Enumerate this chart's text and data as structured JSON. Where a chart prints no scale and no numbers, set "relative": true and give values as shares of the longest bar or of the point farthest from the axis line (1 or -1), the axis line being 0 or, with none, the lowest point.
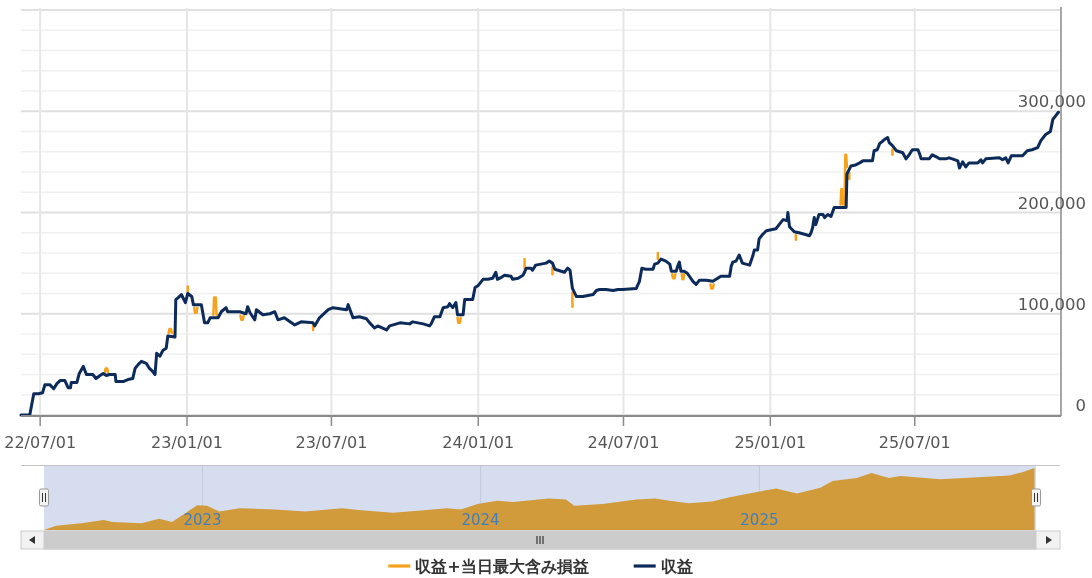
{
  "chart_data": [
    {
      "type": "line",
      "x": [
        "2022-06-07",
        "2022-06-18",
        "2022-06-23",
        "2022-06-29",
        "2022-07-04",
        "2022-07-07",
        "2022-07-13",
        "2022-07-18",
        "2022-07-22",
        "2022-07-26",
        "2022-08-01",
        "2022-08-05",
        "2022-08-08",
        "2022-08-09",
        "2022-08-16",
        "2022-08-19",
        "2022-08-24",
        "2022-08-28",
        "2022-09-05",
        "2022-09-09",
        "2022-09-14",
        "2022-09-18",
        "2022-09-22",
        "2022-09-26",
        "2022-10-03",
        "2022-10-04",
        "2022-10-13",
        "2022-10-19",
        "2022-10-25",
        "2022-10-28",
        "2022-11-01",
        "2022-11-05",
        "2022-11-11",
        "2022-11-15",
        "2022-11-19",
        "2022-11-22",
        "2022-11-24",
        "2022-11-28",
        "2022-12-02",
        "2022-12-06",
        "2022-12-08",
        "2022-12-17",
        "2022-12-18",
        "2022-12-21",
        "2022-12-25",
        "2022-12-30",
        "2023-01-02",
        "2023-01-07",
        "2023-01-09",
        "2023-01-19",
        "2023-01-23",
        "2023-01-27",
        "2023-01-30",
        "2023-02-09",
        "2023-02-13",
        "2023-02-19",
        "2023-02-21",
        "2023-03-08",
        "2023-03-16",
        "2023-03-18",
        "2023-03-21",
        "2023-03-27",
        "2023-03-29",
        "2023-04-06",
        "2023-04-15",
        "2023-04-21",
        "2023-04-25",
        "2023-05-03",
        "2023-05-16",
        "2023-05-24",
        "2023-06-08",
        "2023-06-10",
        "2023-06-16",
        "2023-06-27",
        "2023-07-03",
        "2023-07-20",
        "2023-07-22",
        "2023-07-28",
        "2023-08-05",
        "2023-08-14",
        "2023-08-18",
        "2023-08-24",
        "2023-08-28",
        "2023-09-08",
        "2023-09-12",
        "2023-09-25",
        "2023-10-07",
        "2023-10-11",
        "2023-10-24",
        "2023-11-01",
        "2023-11-03",
        "2023-11-07",
        "2023-11-14",
        "2023-11-18",
        "2023-11-24",
        "2023-11-26",
        "2023-11-30",
        "2023-12-04",
        "2023-12-06",
        "2023-12-13",
        "2023-12-15",
        "2023-12-25",
        "2023-12-28",
        "2024-01-01",
        "2024-01-07",
        "2024-01-13",
        "2024-01-19",
        "2024-01-23",
        "2024-01-25",
        "2024-01-30",
        "2024-02-03",
        "2024-02-11",
        "2024-02-13",
        "2024-02-20",
        "2024-02-26",
        "2024-02-28",
        "2024-03-01",
        "2024-03-07",
        "2024-03-09",
        "2024-03-13",
        "2024-03-26",
        "2024-03-30",
        "2024-04-03",
        "2024-04-06",
        "2024-04-14",
        "2024-04-18",
        "2024-04-22",
        "2024-04-25",
        "2024-04-28",
        "2024-05-03",
        "2024-05-11",
        "2024-05-24",
        "2024-05-28",
        "2024-06-01",
        "2024-06-09",
        "2024-06-18",
        "2024-06-24",
        "2024-06-30",
        "2024-07-17",
        "2024-07-21",
        "2024-07-24",
        "2024-07-29",
        "2024-08-07",
        "2024-08-09",
        "2024-08-13",
        "2024-08-17",
        "2024-08-23",
        "2024-08-28",
        "2024-08-30",
        "2024-09-05",
        "2024-09-07",
        "2024-09-09",
        "2024-09-11",
        "2024-09-15",
        "2024-09-19",
        "2024-09-26",
        "2024-09-30",
        "2024-10-04",
        "2024-10-13",
        "2024-10-21",
        "2024-10-31",
        "2024-11-11",
        "2024-11-13",
        "2024-11-15",
        "2024-11-19",
        "2024-11-23",
        "2024-11-27",
        "2024-12-06",
        "2024-12-10",
        "2024-12-12",
        "2024-12-16",
        "2024-12-18",
        "2024-12-22",
        "2024-12-27",
        "2025-01-02",
        "2025-01-08",
        "2025-01-12",
        "2025-01-17",
        "2025-01-22",
        "2025-01-23",
        "2025-01-25",
        "2025-01-31",
        "2025-02-06",
        "2025-02-15",
        "2025-02-19",
        "2025-02-21",
        "2025-02-23",
        "2025-02-25",
        "2025-02-27",
        "2025-03-03",
        "2025-03-08",
        "2025-03-10",
        "2025-03-14",
        "2025-03-18",
        "2025-03-22",
        "2025-04-06",
        "2025-04-07",
        "2025-04-12",
        "2025-04-18",
        "2025-04-23",
        "2025-04-27",
        "2025-05-09",
        "2025-05-11",
        "2025-05-15",
        "2025-05-18",
        "2025-05-24",
        "2025-05-28",
        "2025-05-30",
        "2025-06-03",
        "2025-06-08",
        "2025-06-16",
        "2025-06-20",
        "2025-06-24",
        "2025-06-28",
        "2025-07-05",
        "2025-07-07",
        "2025-07-09",
        "2025-07-19",
        "2025-07-23",
        "2025-07-28",
        "2025-08-01",
        "2025-08-09",
        "2025-08-13",
        "2025-08-17",
        "2025-08-24",
        "2025-08-26",
        "2025-08-30",
        "2025-09-03",
        "2025-09-07",
        "2025-09-18",
        "2025-09-22",
        "2025-09-24",
        "2025-09-28",
        "2025-10-15",
        "2025-10-19",
        "2025-10-23",
        "2025-10-26",
        "2025-10-30",
        "2025-11-13",
        "2025-11-19",
        "2025-11-25",
        "2025-12-02",
        "2025-12-06",
        "2025-12-12",
        "2025-12-18",
        "2025-12-21",
        "2025-12-24",
        "2025-12-28"
      ],
      "series": [
        {
          "name": "収益+当日最大含み損益",
          "color": "#f7a21b",
          "x": [
            "2022-09-20",
            "2022-09-21",
            "2022-09-23",
            "2022-09-24"
          ],
          "values": [
            42000,
            46000,
            46000,
            42000
          ]
        },
        {
          "color": "#f7a21b",
          "x": [
            "2022-12-09",
            "2022-12-10",
            "2022-12-12",
            "2022-12-13"
          ],
          "values": [
            81000,
            85000,
            85000,
            81000
          ]
        },
        {
          "color": "#f7a21b",
          "x": [
            "2023-01-02",
            "2023-01-02"
          ],
          "values": [
            122000,
            127000
          ]
        },
        {
          "color": "#f7a21b",
          "x": [
            "2023-01-10",
            "2023-01-11",
            "2023-01-13",
            "2023-01-14"
          ],
          "values": [
            106000,
            101000,
            101000,
            106000
          ]
        },
        {
          "color": "#f7a21b",
          "x": [
            "2023-02-03",
            "2023-02-04",
            "2023-02-06",
            "2023-02-07"
          ],
          "values": [
            99000,
            116000,
            116000,
            99000
          ]
        },
        {
          "color": "#f7a21b",
          "x": [
            "2023-03-09",
            "2023-03-10",
            "2023-03-12",
            "2023-03-13"
          ],
          "values": [
            98000,
            94000,
            94000,
            98000
          ]
        },
        {
          "color": "#f7a21b",
          "x": [
            "2023-06-08",
            "2023-06-08"
          ],
          "values": [
            89000,
            84000
          ]
        },
        {
          "color": "#f7a21b",
          "x": [
            "2023-12-06",
            "2023-12-07",
            "2023-12-09",
            "2023-12-10"
          ],
          "values": [
            96000,
            91000,
            91000,
            96000
          ]
        },
        {
          "color": "#f7a21b",
          "x": [
            "2024-02-28",
            "2024-02-28"
          ],
          "values": [
            145000,
            154000
          ]
        },
        {
          "color": "#f7a21b",
          "x": [
            "2024-04-03",
            "2024-04-03"
          ],
          "values": [
            146000,
            139000
          ]
        },
        {
          "color": "#f7a21b",
          "x": [
            "2024-04-28",
            "2024-04-28"
          ],
          "values": [
            121000,
            107000
          ]
        },
        {
          "color": "#f7a21b",
          "x": [
            "2024-08-13",
            "2024-08-13"
          ],
          "values": [
            154000,
            160000
          ]
        },
        {
          "color": "#f7a21b",
          "x": [
            "2024-08-31",
            "2024-09-01",
            "2024-09-03",
            "2024-09-04"
          ],
          "values": [
            139000,
            135000,
            135000,
            139000
          ]
        },
        {
          "color": "#f7a21b",
          "x": [
            "2024-09-12",
            "2024-09-13",
            "2024-09-14",
            "2024-09-15"
          ],
          "values": [
            139000,
            134000,
            134000,
            139000
          ]
        },
        {
          "color": "#f7a21b",
          "x": [
            "2024-10-18",
            "2024-10-19",
            "2024-10-21",
            "2024-10-22"
          ],
          "values": [
            129000,
            125000,
            125000,
            129000
          ]
        },
        {
          "color": "#f7a21b",
          "x": [
            "2025-02-02",
            "2025-02-02"
          ],
          "values": [
            178000,
            173000
          ]
        },
        {
          "color": "#f7a21b",
          "x": [
            "2025-03-30",
            "2025-03-31",
            "2025-04-01",
            "2025-04-02"
          ],
          "values": [
            208000,
            223000,
            223000,
            208000
          ]
        },
        {
          "color": "#f7a21b",
          "x": [
            "2025-04-04",
            "2025-04-05",
            "2025-04-06",
            "2025-04-07"
          ],
          "values": [
            208000,
            257000,
            257000,
            245000
          ]
        },
        {
          "color": "#f7a21b",
          "x": [
            "2025-04-10",
            "2025-04-10"
          ],
          "values": [
            239000,
            233000
          ]
        },
        {
          "color": "#f7a21b",
          "x": [
            "2025-06-03",
            "2025-06-03"
          ],
          "values": [
            262000,
            257000
          ]
        },
        {
          "name": "収益",
          "color": "#0c2b5a",
          "values": [
            0,
            0,
            21000,
            21000,
            22000,
            30000,
            30000,
            26000,
            31000,
            34000,
            34000,
            27000,
            27000,
            32000,
            32000,
            41000,
            48000,
            40000,
            40000,
            36000,
            39000,
            41000,
            39000,
            40000,
            40000,
            33000,
            33000,
            35000,
            36000,
            46000,
            50000,
            53000,
            51000,
            46000,
            43000,
            40000,
            61000,
            58000,
            64000,
            66000,
            78000,
            77000,
            114000,
            116000,
            119000,
            111000,
            120000,
            117000,
            109000,
            109000,
            91000,
            91000,
            96000,
            96000,
            102000,
            106000,
            102000,
            102000,
            100000,
            107000,
            101000,
            94000,
            104000,
            99000,
            100000,
            102000,
            94000,
            96000,
            89000,
            92000,
            91000,
            88000,
            96000,
            104000,
            106000,
            104000,
            109000,
            96000,
            97000,
            95000,
            91000,
            86000,
            88000,
            84000,
            88000,
            91000,
            90000,
            92000,
            90000,
            88000,
            90000,
            97000,
            97000,
            106000,
            107000,
            110000,
            106000,
            111000,
            99000,
            99000,
            114000,
            114000,
            126000,
            128000,
            134000,
            134000,
            135000,
            141000,
            134000,
            136000,
            138000,
            137000,
            134000,
            135000,
            138000,
            141000,
            145000,
            145000,
            143000,
            148000,
            150000,
            152000,
            150000,
            144000,
            142000,
            141000,
            145000,
            143000,
            125000,
            117000,
            117000,
            119000,
            123000,
            124000,
            124000,
            123000,
            124000,
            124000,
            125000,
            132000,
            145000,
            144000,
            144000,
            149000,
            150000,
            154000,
            152000,
            149000,
            142000,
            142000,
            147000,
            151000,
            142000,
            142000,
            140000,
            132000,
            129000,
            133000,
            133000,
            132000,
            137000,
            137000,
            147000,
            151000,
            152000,
            158000,
            150000,
            148000,
            157000,
            163000,
            163000,
            174000,
            178000,
            182000,
            183000,
            184000,
            188000,
            193000,
            192000,
            200000,
            186000,
            181000,
            180000,
            178000,
            177000,
            180000,
            185000,
            195000,
            188000,
            198000,
            198000,
            195000,
            198000,
            196000,
            205000,
            205000,
            238000,
            246000,
            247000,
            249000,
            251000,
            251000,
            261000,
            262000,
            268000,
            272000,
            274000,
            269000,
            266000,
            261000,
            259000,
            253000,
            257000,
            262000,
            262000,
            258000,
            253000,
            253000,
            257000,
            255000,
            253000,
            253000,
            254000,
            253000,
            251000,
            244000,
            250000,
            245000,
            249000,
            249000,
            252000,
            249000,
            253000,
            254000,
            252000,
            254000,
            249000,
            256000,
            256000,
            261000,
            262000,
            264000,
            271000,
            277000,
            280000,
            292000,
            295000,
            299000
          ]
        }
      ],
      "xlim": [
        "2022-06-07",
        "2025-12-30"
      ],
      "xticks": [
        {
          "value": "2022-07-01",
          "label": "22/07/01"
        },
        {
          "value": "2023-01-01",
          "label": "23/01/01"
        },
        {
          "value": "2023-07-01",
          "label": "23/07/01"
        },
        {
          "value": "2024-01-01",
          "label": "24/01/01"
        },
        {
          "value": "2024-07-01",
          "label": "24/07/01"
        },
        {
          "value": "2025-01-01",
          "label": "25/01/01"
        },
        {
          "value": "2025-07-01",
          "label": "25/07/01"
        }
      ],
      "ylim": [
        0,
        400000
      ],
      "yticks": [
        0,
        {
          "value": 20000,
          "label": null
        },
        {
          "value": 40000,
          "label": null
        },
        {
          "value": 60000,
          "label": null
        },
        {
          "value": 80000,
          "label": null
        },
        {
          "value": 100000,
          "label": "100,000"
        },
        {
          "value": 120000,
          "label": null
        },
        {
          "value": 140000,
          "label": null
        },
        {
          "value": 160000,
          "label": null
        },
        {
          "value": 180000,
          "label": null
        },
        {
          "value": 200000,
          "label": "200,000"
        },
        {
          "value": 220000,
          "label": null
        },
        {
          "value": 240000,
          "label": null
        },
        {
          "value": 260000,
          "label": null
        },
        {
          "value": 280000,
          "label": null
        },
        {
          "value": 300000,
          "label": "300,000"
        },
        {
          "value": 320000,
          "label": null
        },
        {
          "value": 340000,
          "label": null
        },
        {
          "value": 360000,
          "label": null
        },
        {
          "value": 380000,
          "label": null
        },
        {
          "value": 400000,
          "label": null
        }
      ],
      "grid": true,
      "legend": "bottom"
    },
    {
      "type": "area",
      "relative": true,
      "color": "#d19a3b",
      "x": [
        "2022-06-07",
        "2022-06-23",
        "2022-07-26",
        "2022-08-24",
        "2022-09-05",
        "2022-10-13",
        "2022-11-05",
        "2022-11-22",
        "2022-12-08",
        "2022-12-25",
        "2023-01-07",
        "2023-01-23",
        "2023-02-19",
        "2023-04-06",
        "2023-05-16",
        "2023-07-03",
        "2023-07-28",
        "2023-09-08",
        "2023-10-11",
        "2023-11-18",
        "2023-12-06",
        "2023-12-28",
        "2024-01-23",
        "2024-02-13",
        "2024-03-30",
        "2024-04-22",
        "2024-05-03",
        "2024-06-09",
        "2024-07-24",
        "2024-08-17",
        "2024-09-05",
        "2024-09-30",
        "2024-10-31",
        "2024-11-23",
        "2024-12-27",
        "2025-01-23",
        "2025-02-19",
        "2025-03-22",
        "2025-04-07",
        "2025-05-09",
        "2025-05-28",
        "2025-06-20",
        "2025-07-05",
        "2025-08-26",
        "2025-10-15",
        "2025-11-25",
        "2025-12-12",
        "2025-12-28"
      ],
      "values": [
        0,
        0.07,
        0.11,
        0.16,
        0.13,
        0.11,
        0.18,
        0.13,
        0.26,
        0.4,
        0.39,
        0.3,
        0.35,
        0.33,
        0.3,
        0.35,
        0.32,
        0.28,
        0.31,
        0.35,
        0.33,
        0.42,
        0.47,
        0.45,
        0.51,
        0.49,
        0.39,
        0.42,
        0.49,
        0.51,
        0.47,
        0.43,
        0.46,
        0.53,
        0.61,
        0.67,
        0.59,
        0.68,
        0.79,
        0.84,
        0.92,
        0.84,
        0.87,
        0.82,
        0.85,
        0.88,
        0.93,
        1
      ],
      "xlim": [
        "2022-06-07",
        "2025-12-30"
      ],
      "xticks": [
        {
          "value": "2023-01-01",
          "label": "2023"
        },
        {
          "value": "2024-01-01",
          "label": "2024"
        },
        {
          "value": "2025-01-01",
          "label": "2025"
        }
      ],
      "tick_labels": "x",
      "grid": "x",
      "bands": [
        {
          "axis": "x",
          "from": "2022-06-07",
          "to": "2025-12-30",
          "color": "#d5ddee"
        }
      ]
    }
  ]
}
